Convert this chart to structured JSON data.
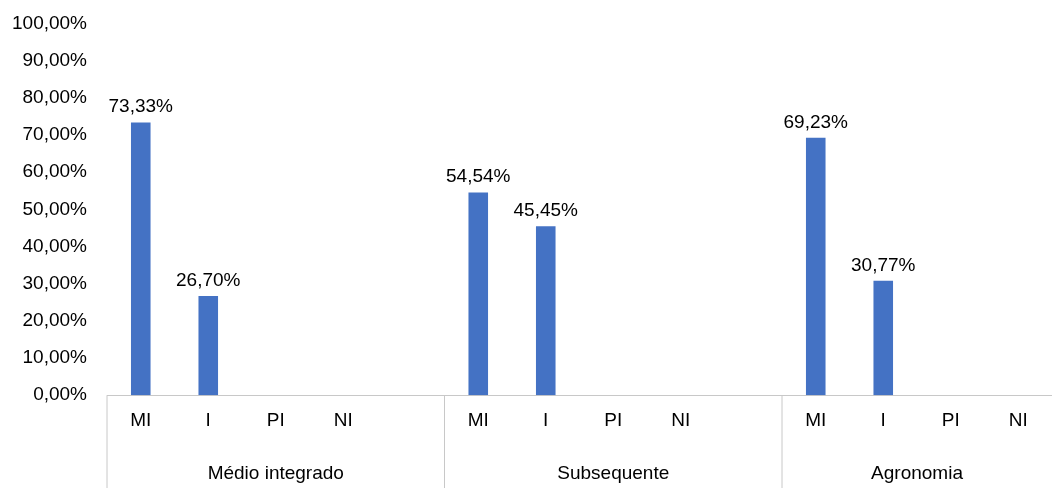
{
  "chart_data": {
    "type": "bar",
    "categories": [
      "MI",
      "I",
      "PI",
      "NI",
      null,
      "MI",
      "I",
      "PI",
      "NI",
      null,
      "MI",
      "I",
      "PI",
      "NI"
    ],
    "values": [
      73.33,
      26.7,
      null,
      null,
      null,
      54.54,
      45.45,
      null,
      null,
      null,
      69.23,
      30.77,
      null,
      null
    ],
    "value_labels": [
      "73,33%",
      "26,70%",
      null,
      null,
      null,
      "54,54%",
      "45,45%",
      null,
      null,
      null,
      "69,23%",
      "30,77%",
      null,
      null
    ],
    "color": "#4472c4",
    "ylim": [
      0,
      100
    ],
    "yticks": [
      {
        "value": 0,
        "label": "0,00%"
      },
      {
        "value": 10,
        "label": "10,00%"
      },
      {
        "value": 20,
        "label": "20,00%"
      },
      {
        "value": 30,
        "label": "30,00%"
      },
      {
        "value": 40,
        "label": "40,00%"
      },
      {
        "value": 50,
        "label": "50,00%"
      },
      {
        "value": 60,
        "label": "60,00%"
      },
      {
        "value": 70,
        "label": "70,00%"
      },
      {
        "value": 80,
        "label": "80,00%"
      },
      {
        "value": 90,
        "label": "90,00%"
      },
      {
        "value": 100,
        "label": "100,00%"
      }
    ],
    "annotations": [
      "Médio integrado",
      "Subsequente",
      "Agronomia"
    ],
    "grid": false,
    "legend": false
  }
}
